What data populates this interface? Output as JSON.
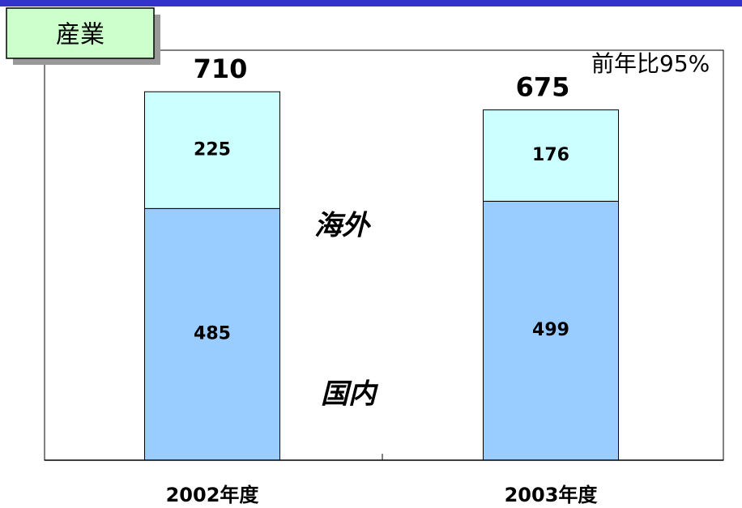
{
  "chart_data": {
    "type": "stacked-bar",
    "title": "産業",
    "annotation": "前年比95%",
    "categories": [
      "2002年度",
      "2003年度"
    ],
    "series": [
      {
        "name": "国内",
        "color": "#99ccff",
        "values": [
          485,
          499
        ]
      },
      {
        "name": "海外",
        "color": "#ccffff",
        "values": [
          225,
          176
        ]
      }
    ],
    "totals": [
      710,
      675
    ],
    "ylim": [
      0,
      790
    ]
  }
}
